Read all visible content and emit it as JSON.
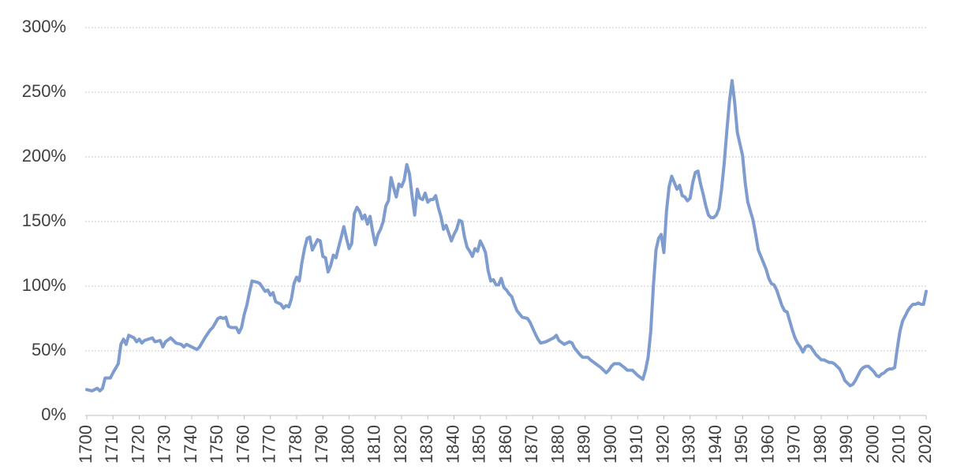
{
  "chart_data": {
    "type": "line",
    "color": "#7f9ccf",
    "grid": true,
    "xlim": [
      1700,
      2020
    ],
    "xticks": [
      1700,
      1710,
      1720,
      1730,
      1740,
      1750,
      1760,
      1770,
      1780,
      1790,
      1800,
      1810,
      1820,
      1830,
      1840,
      1850,
      1860,
      1870,
      1880,
      1890,
      1900,
      1910,
      1920,
      1930,
      1940,
      1950,
      1960,
      1970,
      1980,
      1990,
      2000,
      2010,
      2020
    ],
    "ylim": [
      0,
      300
    ],
    "yticks": [
      {
        "value": 0,
        "label": "0%"
      },
      {
        "value": 50,
        "label": "50%"
      },
      {
        "value": 100,
        "label": "100%"
      },
      {
        "value": 150,
        "label": "150%"
      },
      {
        "value": 200,
        "label": "200%"
      },
      {
        "value": 250,
        "label": "250%"
      },
      {
        "value": 300,
        "label": "300%"
      }
    ],
    "x": [
      1700,
      1702,
      1704,
      1705,
      1706,
      1707,
      1709,
      1710,
      1712,
      1713,
      1714,
      1715,
      1716,
      1718,
      1719,
      1720,
      1721,
      1722,
      1725,
      1726,
      1728,
      1729,
      1730,
      1732,
      1734,
      1736,
      1737,
      1738,
      1740,
      1742,
      1743,
      1745,
      1747,
      1748,
      1750,
      1751,
      1752,
      1753,
      1754,
      1755,
      1757,
      1758,
      1759,
      1760,
      1761,
      1762,
      1763,
      1765,
      1766,
      1768,
      1769,
      1770,
      1771,
      1772,
      1774,
      1775,
      1776,
      1777,
      1778,
      1779,
      1780,
      1781,
      1782,
      1783,
      1784,
      1785,
      1786,
      1787,
      1788,
      1789,
      1790,
      1791,
      1792,
      1793,
      1794,
      1795,
      1797,
      1798,
      1799,
      1800,
      1801,
      1802,
      1803,
      1804,
      1805,
      1806,
      1807,
      1808,
      1809,
      1810,
      1811,
      1812,
      1813,
      1814,
      1815,
      1816,
      1817,
      1818,
      1819,
      1820,
      1821,
      1822,
      1823,
      1824,
      1825,
      1826,
      1827,
      1828,
      1829,
      1830,
      1831,
      1832,
      1833,
      1834,
      1835,
      1836,
      1837,
      1838,
      1839,
      1840,
      1841,
      1842,
      1843,
      1844,
      1845,
      1846,
      1847,
      1848,
      1849,
      1850,
      1851,
      1852,
      1853,
      1854,
      1855,
      1856,
      1857,
      1858,
      1859,
      1860,
      1861,
      1862,
      1863,
      1864,
      1866,
      1868,
      1869,
      1871,
      1872,
      1873,
      1875,
      1878,
      1879,
      1880,
      1882,
      1884,
      1885,
      1886,
      1888,
      1889,
      1891,
      1892,
      1894,
      1896,
      1898,
      1899,
      1900,
      1901,
      1903,
      1905,
      1906,
      1908,
      1910,
      1912,
      1913,
      1914,
      1915,
      1916,
      1917,
      1918,
      1919,
      1920,
      1921,
      1922,
      1923,
      1924,
      1925,
      1926,
      1927,
      1928,
      1929,
      1930,
      1931,
      1932,
      1933,
      1934,
      1935,
      1936,
      1937,
      1938,
      1939,
      1940,
      1941,
      1942,
      1943,
      1944,
      1945,
      1946,
      1947,
      1948,
      1950,
      1951,
      1952,
      1953,
      1954,
      1955,
      1956,
      1958,
      1959,
      1960,
      1961,
      1962,
      1963,
      1964,
      1965,
      1966,
      1967,
      1968,
      1969,
      1970,
      1971,
      1972,
      1973,
      1974,
      1975,
      1976,
      1977,
      1978,
      1979,
      1980,
      1981,
      1982,
      1983,
      1984,
      1985,
      1986,
      1987,
      1988,
      1989,
      1990,
      1991,
      1992,
      1993,
      1994,
      1995,
      1996,
      1997,
      1998,
      1999,
      2000,
      2001,
      2002,
      2003,
      2004,
      2005,
      2006,
      2007,
      2008,
      2009,
      2010,
      2011,
      2012,
      2013,
      2014,
      2015,
      2016,
      2017,
      2018,
      2019,
      2020
    ],
    "values": [
      20,
      19,
      21,
      19,
      21,
      29,
      29,
      33,
      40,
      55,
      59,
      55,
      62,
      60,
      57,
      59,
      56,
      58,
      60,
      57,
      58,
      53,
      57,
      60,
      56,
      55,
      53,
      55,
      53,
      51,
      53,
      60,
      66,
      68,
      75,
      76,
      75,
      76,
      69,
      68,
      68,
      64,
      68,
      78,
      85,
      95,
      104,
      103,
      102,
      96,
      97,
      93,
      95,
      88,
      86,
      83,
      85,
      84,
      90,
      102,
      107,
      104,
      118,
      129,
      137,
      138,
      128,
      132,
      136,
      135,
      123,
      122,
      111,
      116,
      124,
      122,
      138,
      146,
      137,
      129,
      133,
      156,
      161,
      158,
      152,
      155,
      148,
      154,
      142,
      132,
      140,
      144,
      150,
      162,
      166,
      184,
      176,
      169,
      179,
      177,
      182,
      194,
      187,
      170,
      155,
      175,
      168,
      167,
      172,
      165,
      167,
      167,
      170,
      161,
      154,
      144,
      147,
      141,
      135,
      140,
      144,
      151,
      150,
      138,
      130,
      127,
      123,
      129,
      127,
      135,
      131,
      126,
      112,
      104,
      105,
      101,
      101,
      106,
      99,
      97,
      94,
      92,
      86,
      81,
      76,
      75,
      72,
      63,
      59,
      56,
      57,
      60,
      62,
      58,
      55,
      57,
      56,
      52,
      47,
      45,
      45,
      43,
      40,
      37,
      33,
      35,
      38,
      40,
      40,
      37,
      35,
      35,
      31,
      28,
      35,
      45,
      65,
      100,
      128,
      137,
      140,
      126,
      158,
      177,
      185,
      180,
      175,
      178,
      170,
      169,
      166,
      168,
      180,
      188,
      189,
      179,
      171,
      162,
      155,
      153,
      153,
      155,
      160,
      175,
      195,
      220,
      243,
      259,
      242,
      219,
      201,
      180,
      165,
      158,
      151,
      140,
      128,
      118,
      113,
      106,
      102,
      101,
      97,
      91,
      85,
      81,
      80,
      73,
      66,
      60,
      56,
      53,
      49,
      53,
      54,
      53,
      50,
      47,
      45,
      43,
      43,
      42,
      41,
      41,
      40,
      38,
      36,
      32,
      27,
      25,
      23,
      24,
      27,
      31,
      35,
      37,
      38,
      38,
      36,
      34,
      31,
      30,
      32,
      33,
      35,
      36,
      36,
      37,
      52,
      65,
      73,
      77,
      81,
      84,
      86,
      86,
      87,
      86,
      86,
      96
    ]
  }
}
